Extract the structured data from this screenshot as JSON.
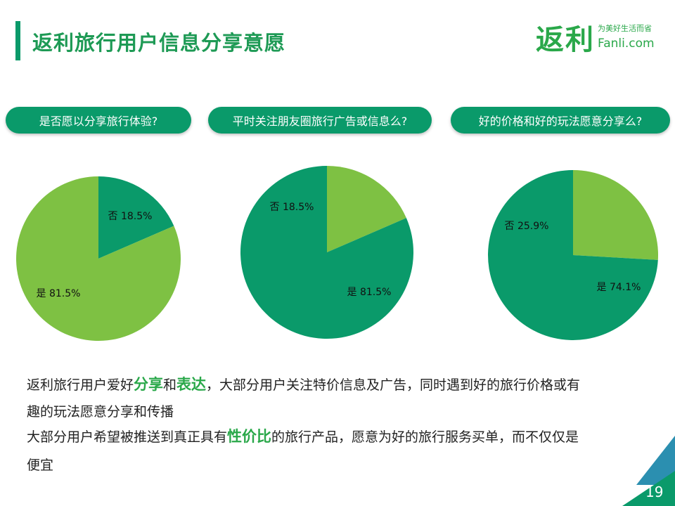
{
  "header": {
    "title": "返利旅行用户信息分享意愿"
  },
  "logo": {
    "main": "返利",
    "slogan": "为美好生活而省",
    "domain": "Fanli.com"
  },
  "colors": {
    "dark_green": "#0a9a6a",
    "light_green": "#7ec143",
    "accent": "#2aa84a",
    "corner_blue": "#2b8fb0"
  },
  "questions": [
    "是否愿以分享旅行体验?",
    "平时关注朋友圈旅行广告或信息么?",
    "好的价格和好的玩法愿意分享么?"
  ],
  "chart_data": [
    {
      "type": "pie",
      "title": "是否愿以分享旅行体验?",
      "slices": [
        {
          "label": "否",
          "value": 18.5,
          "display": "否 18.5%",
          "color": "#0a9a6a"
        },
        {
          "label": "是",
          "value": 81.5,
          "display": "是 81.5%",
          "color": "#7ec143"
        }
      ]
    },
    {
      "type": "pie",
      "title": "平时关注朋友圈旅行广告或信息么?",
      "slices": [
        {
          "label": "否",
          "value": 18.5,
          "display": "否 18.5%",
          "color": "#7ec143"
        },
        {
          "label": "是",
          "value": 81.5,
          "display": "是 81.5%",
          "color": "#0a9a6a"
        }
      ]
    },
    {
      "type": "pie",
      "title": "好的价格和好的玩法愿意分享么?",
      "slices": [
        {
          "label": "否",
          "value": 25.9,
          "display": "否 25.9%",
          "color": "#7ec143"
        },
        {
          "label": "是",
          "value": 74.1,
          "display": "是 74.1%",
          "color": "#0a9a6a"
        }
      ]
    }
  ],
  "summary": {
    "line1": [
      {
        "text": "返利旅行用户爱好",
        "hl": false
      },
      {
        "text": "分享",
        "hl": true
      },
      {
        "text": "和",
        "hl": false
      },
      {
        "text": "表达",
        "hl": true
      },
      {
        "text": "，大部分用户关注特价信息及广告，同时遇到好的旅行价格或有",
        "hl": false
      }
    ],
    "line2": "趣的玩法愿意分享和传播",
    "line3": [
      {
        "text": "大部分用户希望被推送到真正具有",
        "hl": false
      },
      {
        "text": "性价比",
        "hl": true
      },
      {
        "text": "的旅行产品，愿意为好的旅行服务买单，而不仅仅是",
        "hl": false
      }
    ],
    "line4": "便宜"
  },
  "footer": {
    "page_number": "19"
  }
}
